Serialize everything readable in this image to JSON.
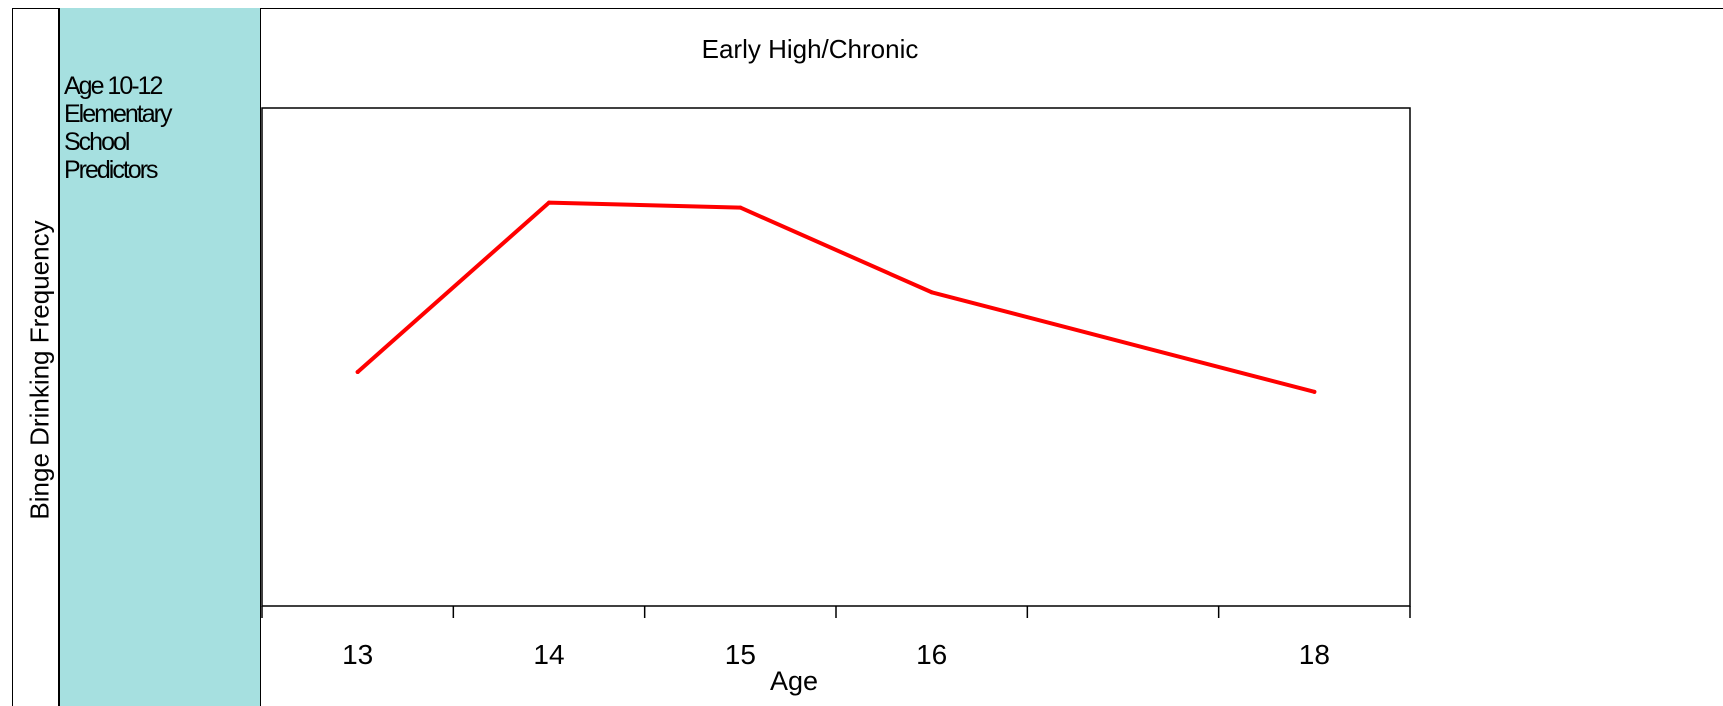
{
  "chart_data": {
    "type": "line",
    "title": "Early High/Chronic",
    "xlabel": "Age",
    "ylabel": "Binge Drinking Frequency",
    "categories": [
      "13",
      "14",
      "15",
      "16",
      "",
      "18"
    ],
    "series": [
      {
        "values": [
          0.47,
          0.81,
          0.8,
          0.63,
          null,
          0.43
        ],
        "color": "#ff0000"
      }
    ],
    "ylim": [
      0,
      1
    ],
    "grid": false,
    "legend": "none"
  },
  "band": {
    "text": "Age 10-12\nElementary\nSchool\nPredictors",
    "color": "#a6e0e0"
  }
}
